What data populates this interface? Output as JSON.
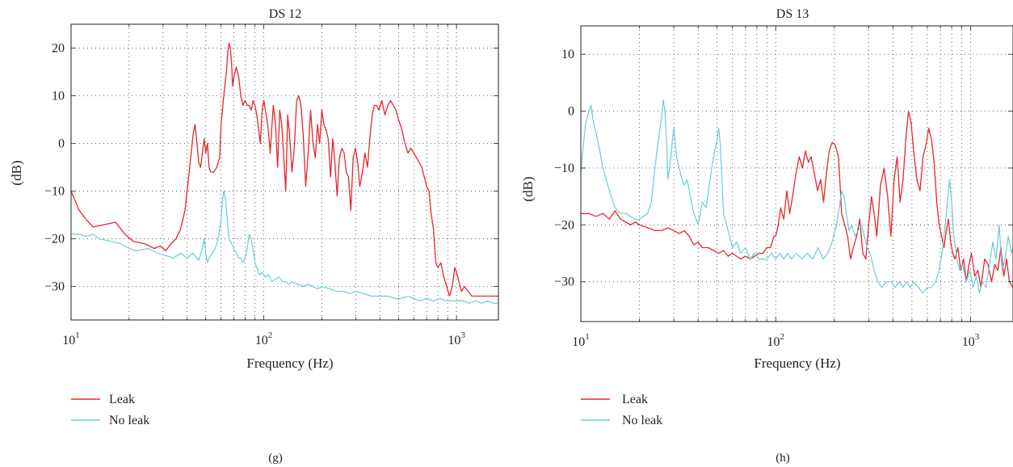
{
  "colors": {
    "leak": "#e8262d",
    "no_leak": "#6ccbd6",
    "axis": "#231f20",
    "grid": "#231f20"
  },
  "chart_data": [
    {
      "type": "line",
      "title": "DS 12",
      "xlabel": "Frequency (Hz)",
      "ylabel": "(dB)",
      "xscale": "log",
      "xlim": [
        10,
        1650
      ],
      "ylim": [
        -37,
        25
      ],
      "x_ticks": [
        {
          "value": 10,
          "base": "10",
          "exp": "1"
        },
        {
          "value": 100,
          "base": "10",
          "exp": "2"
        },
        {
          "value": 1000,
          "base": "10",
          "exp": "3"
        }
      ],
      "y_ticks": [
        20,
        10,
        0,
        -10,
        -20,
        -30
      ],
      "y_tick_labels": [
        "20",
        "10",
        "0",
        "−10",
        "−20",
        "−30"
      ],
      "grid": true,
      "legend_position": "below",
      "panel_label": "(g)",
      "series": [
        {
          "name": "Leak",
          "color": "#e8262d",
          "x": [
            10,
            11,
            12,
            13,
            15,
            17,
            19,
            21,
            24,
            27,
            29,
            31,
            33,
            35,
            37,
            39,
            41,
            43,
            44,
            45,
            46,
            47,
            48,
            49,
            50,
            51,
            52,
            53,
            55,
            57,
            59,
            60,
            62,
            64,
            65,
            66,
            67,
            68,
            69,
            70,
            71,
            72,
            74,
            76,
            78,
            80,
            82,
            84,
            86,
            88,
            90,
            92,
            94,
            96,
            98,
            100,
            102,
            104,
            106,
            108,
            110,
            112,
            115,
            118,
            121,
            124,
            127,
            130,
            133,
            136,
            140,
            144,
            148,
            152,
            156,
            160,
            165,
            170,
            175,
            180,
            185,
            190,
            195,
            200,
            205,
            210,
            216,
            222,
            228,
            234,
            240,
            247,
            254,
            261,
            268,
            275,
            283,
            291,
            299,
            307,
            315,
            325,
            335,
            345,
            355,
            365,
            375,
            385,
            395,
            410,
            425,
            440,
            455,
            470,
            485,
            500,
            520,
            540,
            560,
            580,
            600,
            620,
            640,
            660,
            680,
            700,
            720,
            740,
            760,
            780,
            800,
            830,
            860,
            890,
            920,
            950,
            980,
            1000,
            1030,
            1060,
            1100,
            1150,
            1200,
            1300,
            1400,
            1500,
            1650
          ],
          "y": [
            -10,
            -14,
            -16,
            -17.5,
            -17,
            -16.5,
            -19,
            -20.5,
            -21,
            -22,
            -21.5,
            -22.5,
            -21,
            -20,
            -18,
            -14,
            -6,
            2,
            4,
            0,
            -4,
            -5,
            -2,
            1,
            -2,
            0,
            -5,
            -6,
            -6,
            -5,
            -3,
            4,
            10,
            15,
            19,
            21,
            20,
            17,
            12,
            14,
            15,
            16,
            14,
            10,
            8,
            9,
            8,
            8,
            7,
            9,
            8,
            6,
            3,
            0,
            7,
            9,
            7,
            5,
            2,
            -2,
            3,
            8,
            4,
            -5,
            7,
            4,
            -3,
            -10,
            6,
            2,
            -6,
            -1,
            9,
            10,
            8,
            2,
            -9,
            -2,
            7,
            0,
            -3,
            4,
            0,
            7,
            4,
            3,
            1,
            -7,
            1,
            -4,
            -11,
            -3,
            -1,
            -2,
            -6,
            -7,
            -14,
            -3,
            -1,
            -4,
            -9,
            -6,
            -2,
            -5,
            1,
            6,
            8,
            8,
            7,
            9,
            6,
            8,
            9,
            8,
            7,
            5,
            3,
            0,
            -2,
            -1,
            -2,
            -3,
            -4,
            -5,
            -7,
            -9,
            -10,
            -15,
            -18,
            -25,
            -26,
            -25,
            -28,
            -30,
            -32,
            -30,
            -26,
            -27,
            -29,
            -31,
            -30,
            -31,
            -32,
            -32,
            -32,
            -32,
            -32
          ],
          "stroke_width": 1.3
        },
        {
          "name": "No leak",
          "color": "#6ccbd6",
          "x": [
            10,
            11,
            12,
            13,
            14,
            16,
            18,
            20,
            22,
            25,
            28,
            31,
            34,
            37,
            40,
            43,
            46,
            48,
            49,
            50,
            51,
            52,
            54,
            56,
            58,
            60,
            61,
            62,
            63,
            64,
            65,
            66,
            68,
            70,
            72,
            74,
            76,
            78,
            80,
            82,
            84,
            86,
            88,
            90,
            92,
            95,
            98,
            102,
            106,
            110,
            115,
            120,
            125,
            130,
            135,
            140,
            150,
            160,
            170,
            180,
            190,
            200,
            220,
            240,
            260,
            280,
            300,
            330,
            360,
            400,
            440,
            480,
            520,
            560,
            600,
            650,
            700,
            760,
            820,
            880,
            950,
            1000,
            1080,
            1160,
            1250,
            1350,
            1450,
            1550,
            1650
          ],
          "y": [
            -19,
            -19,
            -19.5,
            -19,
            -20,
            -20.5,
            -21,
            -22,
            -22.5,
            -22,
            -23,
            -23.5,
            -24,
            -23,
            -24,
            -23,
            -24.5,
            -22,
            -20,
            -23,
            -25,
            -24,
            -23,
            -22,
            -20,
            -16,
            -12,
            -10,
            -11,
            -14,
            -17,
            -20,
            -21,
            -22,
            -23,
            -24,
            -24,
            -25,
            -24,
            -22,
            -19,
            -20,
            -22,
            -25,
            -26,
            -27.5,
            -27,
            -28,
            -27.5,
            -29,
            -28.5,
            -28,
            -29,
            -29,
            -29.5,
            -29,
            -29.5,
            -30,
            -29.5,
            -30,
            -30.5,
            -30,
            -30.5,
            -31,
            -31,
            -31.5,
            -31,
            -31.5,
            -32,
            -32,
            -32,
            -32.5,
            -32.5,
            -32,
            -32.5,
            -33,
            -32.5,
            -33,
            -32.5,
            -33,
            -33,
            -33,
            -33,
            -33.5,
            -33,
            -33.5,
            -33,
            -33.5,
            -33.5
          ],
          "stroke_width": 1.2
        }
      ]
    },
    {
      "type": "line",
      "title": "DS 13",
      "xlabel": "Frequency (Hz)",
      "ylabel": "(dB)",
      "xscale": "log",
      "xlim": [
        10,
        1650
      ],
      "ylim": [
        -37,
        15
      ],
      "x_ticks": [
        {
          "value": 10,
          "base": "10",
          "exp": "1"
        },
        {
          "value": 100,
          "base": "10",
          "exp": "2"
        },
        {
          "value": 1000,
          "base": "10",
          "exp": "3"
        }
      ],
      "y_ticks": [
        10,
        0,
        -10,
        -20,
        -30
      ],
      "y_tick_labels": [
        "10",
        "0",
        "−10",
        "−20",
        "−30"
      ],
      "grid": true,
      "legend_position": "below",
      "panel_label": "(h)",
      "series": [
        {
          "name": "Leak",
          "color": "#e8262d",
          "x": [
            10,
            11,
            12,
            13,
            14,
            15,
            16,
            17,
            18,
            19,
            20,
            22,
            24,
            26,
            28,
            30,
            32,
            34,
            36,
            38,
            40,
            42,
            45,
            48,
            51,
            54,
            57,
            60,
            63,
            66,
            70,
            74,
            78,
            82,
            86,
            90,
            94,
            98,
            100,
            103,
            106,
            110,
            114,
            118,
            122,
            127,
            132,
            137,
            142,
            147,
            152,
            158,
            164,
            170,
            176,
            182,
            188,
            195,
            202,
            210,
            218,
            226,
            234,
            242,
            250,
            260,
            270,
            280,
            290,
            300,
            310,
            320,
            330,
            345,
            360,
            375,
            390,
            405,
            420,
            435,
            450,
            465,
            480,
            495,
            510,
            530,
            550,
            570,
            590,
            610,
            630,
            650,
            670,
            690,
            710,
            730,
            750,
            770,
            790,
            810,
            830,
            860,
            890,
            920,
            950,
            980,
            1010,
            1050,
            1090,
            1130,
            1180,
            1230,
            1280,
            1330,
            1380,
            1430,
            1480,
            1530,
            1580,
            1650
          ],
          "y": [
            -18,
            -18,
            -18.5,
            -18,
            -19,
            -17.5,
            -19,
            -19.5,
            -20,
            -19.5,
            -20,
            -20.5,
            -21,
            -21,
            -20.5,
            -21,
            -21.5,
            -21,
            -22,
            -23.5,
            -23,
            -24,
            -24,
            -24.5,
            -25,
            -24.5,
            -25.5,
            -25,
            -25.5,
            -26,
            -25.5,
            -26,
            -25.5,
            -25,
            -25,
            -24,
            -24,
            -22,
            -22,
            -20,
            -17,
            -19,
            -14,
            -18,
            -15,
            -11,
            -8,
            -10,
            -7,
            -9,
            -8,
            -11,
            -14,
            -12,
            -16,
            -11,
            -7,
            -5.5,
            -6,
            -8,
            -18,
            -20,
            -22,
            -26,
            -24,
            -22,
            -19,
            -25,
            -26,
            -20,
            -15,
            -18,
            -22,
            -13,
            -10,
            -15,
            -22,
            -12,
            -8,
            -16,
            -12,
            -5,
            0,
            -2,
            -7,
            -12,
            -14,
            -8,
            -6,
            -3,
            -5,
            -9,
            -16,
            -20,
            -22,
            -24,
            -21,
            -19,
            -23,
            -25,
            -26,
            -24,
            -28,
            -26,
            -30,
            -27,
            -25,
            -29,
            -28,
            -31,
            -26,
            -27,
            -30,
            -27,
            -28,
            -24,
            -29,
            -26,
            -30,
            -31
          ],
          "stroke_width": 1.3
        },
        {
          "name": "No leak",
          "color": "#6ccbd6",
          "x": [
            10,
            10.3,
            10.6,
            11,
            11.3,
            11.6,
            12,
            12.5,
            13,
            14,
            15,
            16,
            17,
            18,
            19,
            20,
            21,
            22,
            23,
            24,
            25,
            26,
            26.5,
            27,
            27.5,
            28,
            29,
            29.5,
            30,
            31,
            32,
            33,
            34,
            35,
            36,
            38,
            40,
            42,
            44,
            46,
            48,
            50,
            51,
            52,
            53,
            54,
            56,
            58,
            60,
            63,
            66,
            70,
            74,
            78,
            82,
            86,
            90,
            95,
            100,
            105,
            110,
            115,
            120,
            128,
            136,
            145,
            155,
            165,
            175,
            185,
            195,
            205,
            212,
            218,
            224,
            230,
            238,
            246,
            255,
            265,
            275,
            285,
            295,
            305,
            320,
            335,
            350,
            370,
            390,
            410,
            430,
            450,
            470,
            490,
            510,
            540,
            570,
            600,
            630,
            660,
            690,
            720,
            750,
            780,
            800,
            820,
            850,
            880,
            910,
            950,
            990,
            1030,
            1070,
            1110,
            1150,
            1200,
            1250,
            1300,
            1350,
            1400,
            1450,
            1500,
            1560,
            1620,
            1650
          ],
          "y": [
            -11,
            -6,
            -2,
            0,
            1,
            -2,
            -4,
            -7,
            -10,
            -14,
            -17,
            -18,
            -18,
            -18.5,
            -19,
            -19,
            -18.5,
            -18,
            -16,
            -10,
            -5,
            -1,
            2,
            0,
            -5,
            -12,
            -8,
            -5,
            -3,
            -8,
            -10,
            -12,
            -13,
            -12,
            -14,
            -18,
            -20,
            -16,
            -17,
            -12,
            -8,
            -5,
            -3,
            -6,
            -12,
            -18,
            -20,
            -22,
            -24,
            -23,
            -25,
            -24,
            -26,
            -25,
            -26,
            -26,
            -26,
            -25,
            -26,
            -25,
            -26,
            -25,
            -26,
            -25,
            -26,
            -25,
            -26,
            -24,
            -26,
            -25,
            -23,
            -20,
            -17,
            -14,
            -15,
            -18,
            -21,
            -20,
            -22,
            -21,
            -20,
            -22,
            -24,
            -25,
            -28,
            -30,
            -31,
            -30,
            -30,
            -31,
            -30,
            -31,
            -30,
            -31,
            -30,
            -31,
            -32,
            -31,
            -31,
            -30,
            -28,
            -24,
            -18,
            -12,
            -16,
            -22,
            -26,
            -28,
            -27,
            -30,
            -28,
            -31,
            -29,
            -32,
            -30,
            -31,
            -27,
            -23,
            -26,
            -20,
            -28,
            -26,
            -22,
            -25,
            -24
          ],
          "stroke_width": 1.2
        }
      ]
    }
  ]
}
